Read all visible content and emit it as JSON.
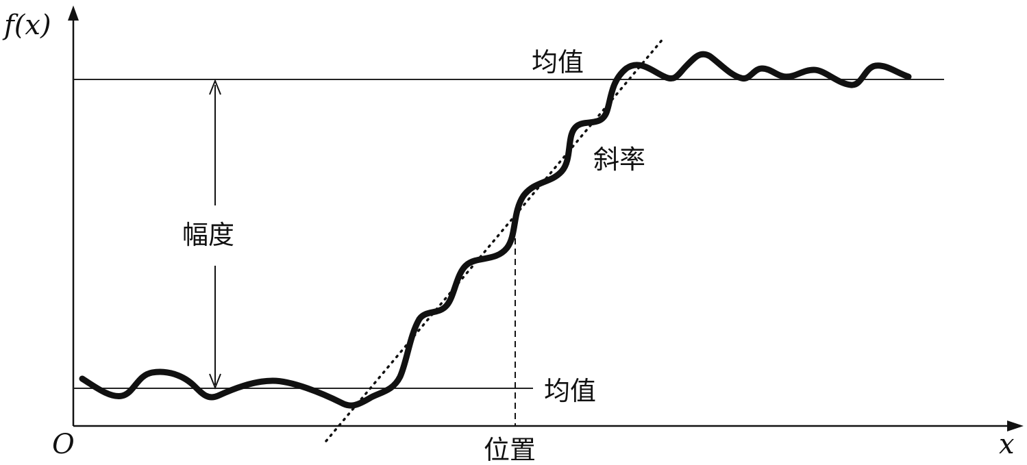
{
  "diagram": {
    "y_axis_label": "f(x)",
    "x_axis_label": "x",
    "origin_label": "O",
    "upper_mean_label": "均值",
    "lower_mean_label": "均值",
    "slope_label": "斜率",
    "amplitude_label": "幅度",
    "position_label": "位置"
  },
  "colors": {
    "ink": "#111111",
    "background": "#ffffff"
  }
}
